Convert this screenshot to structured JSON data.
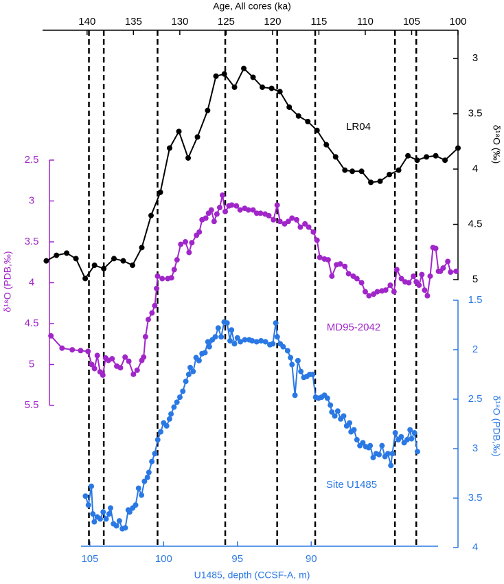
{
  "chart_data": {
    "type": "line",
    "xlabel": "Age, All cores (ka)",
    "xlim": [
      144.8,
      100
    ],
    "xticks": [
      140,
      135,
      130,
      125,
      120,
      115,
      110,
      105,
      100
    ],
    "x2label": "U1485, depth (CCSF-A, m)",
    "x2lim": [
      105.6,
      81.4
    ],
    "x2ticks": [
      105,
      100,
      95,
      90
    ],
    "ylabel": "δ¹⁸O (PDB,‰)",
    "ylim": [
      2.5,
      5.5
    ],
    "yticks": [
      2.5,
      3,
      3.5,
      4,
      4.5,
      5,
      5.5
    ],
    "y2label": "δ¹⁸O (‰)",
    "y2lim": [
      2.85,
      5
    ],
    "y2ticks": [
      3,
      3.5,
      4,
      4.5,
      5
    ],
    "y3label": "δ¹⁸O (PDB,‰)",
    "y3lim": [
      1.5,
      4
    ],
    "y3ticks": [
      1.5,
      2,
      2.5,
      3,
      3.5,
      4
    ],
    "tie_lines": [
      139.8,
      138.2,
      132.4,
      125.1,
      119.5,
      115.4,
      106.8,
      104.5
    ],
    "series": [
      {
        "name": "LR04",
        "color": "#000000",
        "x_axis": "x",
        "axis": "y2",
        "x": [
          144.4,
          143.3,
          142.2,
          141.2,
          140.2,
          139.2,
          138.2,
          137.1,
          136.1,
          135.1,
          134.1,
          133.1,
          132.1,
          131.1,
          130.1,
          129.1,
          128.1,
          127.0,
          126.1,
          125.2,
          124.1,
          123.1,
          122.1,
          121.1,
          120.1,
          119.2,
          118.2,
          117.2,
          116.2,
          115.2,
          114.2,
          113.2,
          112.2,
          111.4,
          110.4,
          109.4,
          108.4,
          107.4,
          106.4,
          105.4,
          104.4,
          103.4,
          102.4,
          101.4,
          100.0
        ],
        "values": [
          4.83,
          4.78,
          4.76,
          4.81,
          4.99,
          4.87,
          4.9,
          4.81,
          4.83,
          4.87,
          4.71,
          4.42,
          4.21,
          3.81,
          3.66,
          3.9,
          3.71,
          3.47,
          3.16,
          3.14,
          3.26,
          3.09,
          3.17,
          3.26,
          3.27,
          3.3,
          3.44,
          3.52,
          3.57,
          3.65,
          3.78,
          3.89,
          4.01,
          4.02,
          4.02,
          4.12,
          4.11,
          4.05,
          4.01,
          3.88,
          3.92,
          3.89,
          3.88,
          3.92,
          3.81
        ]
      },
      {
        "name": "MD95-2042",
        "color": "#a126c9",
        "x_axis": "x",
        "axis": "y",
        "x": [
          143.9,
          142.7,
          141.6,
          140.7,
          139.9,
          139.5,
          139.2,
          138.9,
          138.6,
          138.3,
          138.0,
          137.7,
          137.3,
          136.8,
          136.4,
          135.9,
          135.5,
          135.0,
          134.6,
          134.1,
          133.9,
          133.7,
          133.4,
          133.0,
          132.7,
          132.5,
          132.4,
          131.9,
          131.3,
          130.9,
          130.6,
          130.3,
          129.9,
          129.4,
          129.0,
          128.7,
          128.2,
          127.9,
          127.6,
          127.2,
          126.9,
          126.6,
          126.3,
          126.0,
          125.7,
          125.4,
          125.1,
          124.7,
          124.4,
          123.9,
          123.5,
          123.0,
          122.6,
          122.1,
          121.7,
          121.3,
          120.8,
          120.4,
          119.9,
          119.5,
          119.2,
          118.7,
          118.3,
          117.9,
          117.4,
          117.0,
          116.5,
          116.1,
          115.6,
          115.2,
          114.9,
          114.4,
          114.0,
          113.6,
          113.1,
          112.7,
          112.2,
          111.8,
          111.3,
          110.9,
          110.4,
          110.0,
          109.6,
          109.1,
          108.7,
          108.2,
          107.8,
          107.3,
          106.9,
          106.6,
          106.1,
          105.7,
          105.3,
          104.8,
          104.5,
          104.2,
          103.9,
          103.6,
          103.3,
          103.0,
          102.7,
          102.4,
          102.1,
          101.9,
          101.6,
          101.1,
          100.8,
          100.2
        ],
        "values": [
          4.65,
          4.8,
          4.82,
          4.83,
          4.84,
          5.0,
          5.05,
          4.89,
          5.09,
          5.13,
          4.92,
          4.95,
          4.93,
          5.02,
          5.04,
          4.91,
          4.96,
          5.12,
          5.07,
          4.95,
          4.91,
          4.66,
          4.45,
          4.37,
          4.28,
          4.07,
          3.92,
          3.95,
          3.95,
          3.94,
          3.84,
          3.72,
          3.53,
          3.5,
          3.63,
          3.51,
          3.42,
          3.38,
          3.23,
          3.21,
          3.15,
          3.11,
          3.25,
          3.16,
          3.08,
          2.93,
          3.13,
          3.06,
          3.05,
          3.06,
          3.11,
          3.09,
          3.11,
          3.11,
          3.15,
          3.15,
          3.16,
          3.18,
          3.23,
          3.05,
          3.25,
          3.28,
          3.25,
          3.21,
          3.23,
          3.32,
          3.28,
          3.32,
          3.38,
          3.48,
          3.69,
          3.71,
          3.72,
          3.92,
          3.78,
          3.77,
          3.8,
          3.89,
          3.92,
          3.95,
          4.0,
          4.11,
          4.16,
          4.14,
          4.11,
          4.1,
          4.09,
          4.03,
          4.11,
          3.84,
          3.95,
          3.99,
          4.0,
          3.92,
          3.99,
          4.03,
          3.9,
          4.09,
          4.16,
          3.92,
          3.57,
          3.58,
          3.86,
          3.86,
          3.82,
          3.74,
          3.87,
          3.86
        ]
      },
      {
        "name": "Site U1485",
        "color": "#2a78e4",
        "x_axis": "x2",
        "axis": "y3",
        "x": [
          105.3,
          105.1,
          104.9,
          104.8,
          104.7,
          104.5,
          104.3,
          104.1,
          103.9,
          103.7,
          103.6,
          103.4,
          103.2,
          103.0,
          102.8,
          102.6,
          102.4,
          102.3,
          102.1,
          101.9,
          101.7,
          101.5,
          101.3,
          101.1,
          101.0,
          100.8,
          100.6,
          100.4,
          100.2,
          100.0,
          99.8,
          99.6,
          99.5,
          99.3,
          99.1,
          98.9,
          98.7,
          98.5,
          98.3,
          98.2,
          98.0,
          97.8,
          97.6,
          97.4,
          97.2,
          97.0,
          96.9,
          96.7,
          96.5,
          96.3,
          96.1,
          95.9,
          95.7,
          95.5,
          95.4,
          95.2,
          95.0,
          94.8,
          94.5,
          94.2,
          94.0,
          93.7,
          93.4,
          93.1,
          92.8,
          92.6,
          92.4,
          92.3,
          92.1,
          91.9,
          91.6,
          91.4,
          91.3,
          91.1,
          90.9,
          90.7,
          90.5,
          90.3,
          90.1,
          89.9,
          89.7,
          89.5,
          89.3,
          89.1,
          88.9,
          88.7,
          88.6,
          88.4,
          88.2,
          88.0,
          87.8,
          87.6,
          87.4,
          87.3,
          87.1,
          86.9,
          86.7,
          86.5,
          86.3,
          86.1,
          86.0,
          85.8,
          85.6,
          85.4,
          85.2,
          85.0,
          84.8,
          84.6,
          84.5,
          84.3,
          84.1,
          83.9,
          83.7,
          83.5,
          83.3,
          83.2,
          83.0,
          82.8
        ],
        "values": [
          3.48,
          3.57,
          3.38,
          3.66,
          3.74,
          3.69,
          3.71,
          3.64,
          3.71,
          3.66,
          3.6,
          3.76,
          3.78,
          3.73,
          3.81,
          3.8,
          3.62,
          3.64,
          3.6,
          3.57,
          3.4,
          3.47,
          3.33,
          3.29,
          3.24,
          3.13,
          3.05,
          2.91,
          2.83,
          2.74,
          2.77,
          2.7,
          2.65,
          2.58,
          2.53,
          2.48,
          2.42,
          2.32,
          2.25,
          2.18,
          2.22,
          2.08,
          2.11,
          2.04,
          2.03,
          1.92,
          1.97,
          1.9,
          1.87,
          1.78,
          1.87,
          1.72,
          1.73,
          1.91,
          1.8,
          1.94,
          1.88,
          1.92,
          1.9,
          1.9,
          1.91,
          1.92,
          1.91,
          1.92,
          1.95,
          1.94,
          1.73,
          1.87,
          1.94,
          1.97,
          2.01,
          2.08,
          2.15,
          2.46,
          2.11,
          2.22,
          2.28,
          2.27,
          2.25,
          2.25,
          2.48,
          2.49,
          2.48,
          2.46,
          2.49,
          2.56,
          2.63,
          2.67,
          2.62,
          2.7,
          2.67,
          2.77,
          2.74,
          2.83,
          2.81,
          2.91,
          2.97,
          2.94,
          2.98,
          2.99,
          2.97,
          3.09,
          3.05,
          3.06,
          2.97,
          3.08,
          3.05,
          3.17,
          3.05,
          2.84,
          2.91,
          2.88,
          2.94,
          2.91,
          2.81,
          2.9,
          2.84,
          3.03
        ]
      }
    ]
  }
}
